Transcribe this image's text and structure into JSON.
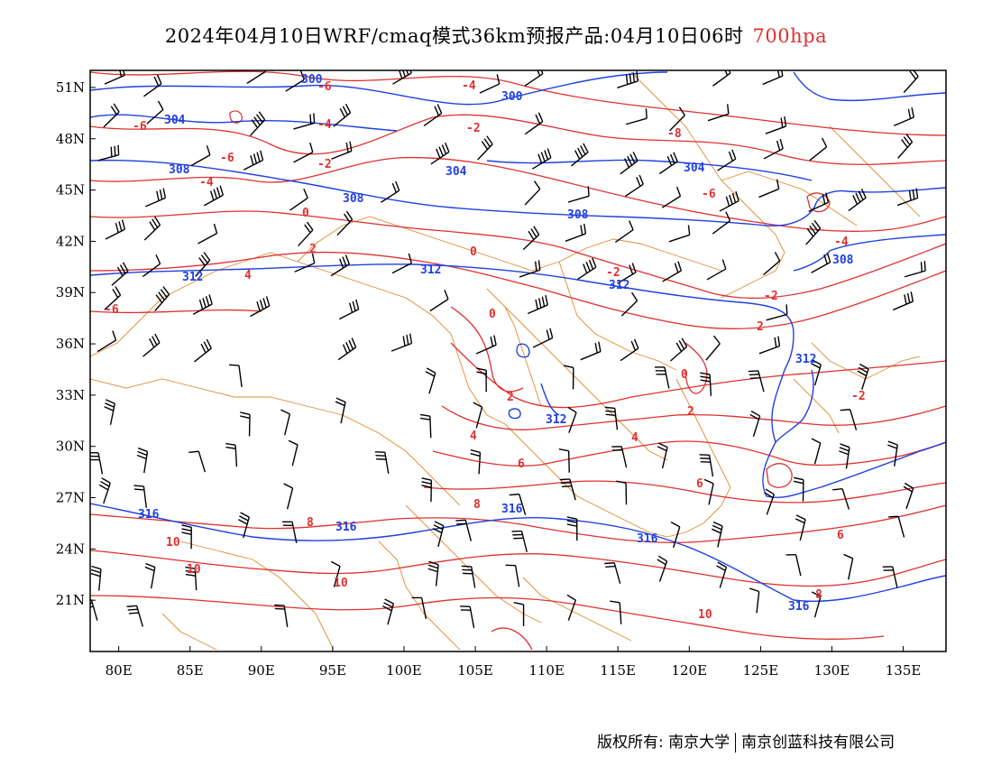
{
  "title": {
    "main": "2024年04月10日WRF/cmaq模式36km预报产品:04月10日06时",
    "level": "700hpa"
  },
  "axes": {
    "x_ticks": [
      "80E",
      "85E",
      "90E",
      "95E",
      "100E",
      "105E",
      "110E",
      "115E",
      "120E",
      "125E",
      "130E",
      "135E"
    ],
    "y_ticks": [
      "51N",
      "48N",
      "45N",
      "42N",
      "39N",
      "36N",
      "33N",
      "30N",
      "27N",
      "24N",
      "21N"
    ]
  },
  "footer": {
    "left": "版权所有: 南京大学",
    "right": "南京创蓝科技有限公司"
  },
  "colors": {
    "geopotential": "#2040e0",
    "temperature": "#e03030",
    "boundary": "#e08a30",
    "wind": "#000000"
  },
  "chart_data": {
    "type": "contour-map",
    "lon_range": [
      78,
      138
    ],
    "lat_range": [
      18,
      52
    ],
    "geopotential_labels": [
      "300",
      "300",
      "304",
      "304",
      "304",
      "308",
      "308",
      "308",
      "308",
      "312",
      "312",
      "312",
      "312",
      "312",
      "316",
      "316",
      "316",
      "316",
      "316"
    ],
    "temperature_labels": [
      "-6",
      "-6",
      "-4",
      "-4",
      "-2",
      "-2",
      "0",
      "0",
      "0",
      "2",
      "2",
      "4",
      "4",
      "6",
      "6",
      "8",
      "8",
      "10",
      "10",
      "10",
      "-6",
      "-6",
      "-4",
      "-2",
      "-2",
      "0",
      "2",
      "2",
      "-2",
      "-4",
      "-6",
      "-8",
      "4",
      "6",
      "8",
      "10"
    ],
    "wind_barbs": "shown"
  }
}
